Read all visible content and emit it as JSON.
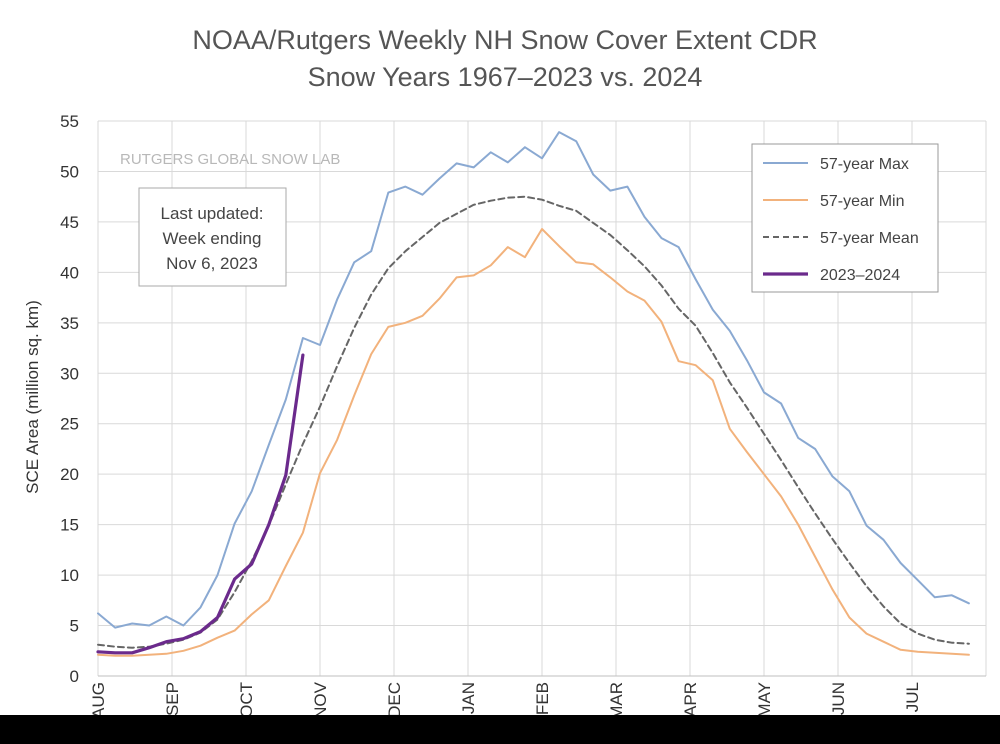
{
  "chart_data": {
    "type": "line",
    "title": "NOAA/Rutgers Weekly NH Snow Cover Extent CDR",
    "subtitle": "Snow Years 1967–2023 vs. 2024",
    "ylabel": "SCE Area (million sq. km)",
    "xlabel": "",
    "ylim": [
      0,
      55
    ],
    "yticks": [
      "0",
      "5",
      "10",
      "15",
      "20",
      "25",
      "30",
      "35",
      "40",
      "45",
      "50",
      "55"
    ],
    "month_labels": [
      "AUG",
      "SEP",
      "OCT",
      "NOV",
      "DEC",
      "JAN",
      "FEB",
      "MAR",
      "APR",
      "MAY",
      "JUN",
      "JUL"
    ],
    "weeks_per_month": 4.33,
    "grid": true,
    "legend_position": "top-right",
    "watermark": "RUTGERS GLOBAL SNOW LAB",
    "note": [
      "Last updated:",
      "Week ending",
      "Nov 6, 2023"
    ],
    "series": [
      {
        "name": "57-year Max",
        "color": "#8aa9d2",
        "dash": "",
        "values": [
          6.2,
          4.8,
          5.2,
          5.0,
          5.9,
          5.0,
          6.8,
          10.0,
          15.1,
          18.3,
          22.9,
          27.4,
          33.5,
          32.8,
          37.3,
          41.0,
          42.1,
          47.9,
          48.5,
          47.7,
          49.3,
          50.8,
          50.4,
          51.9,
          50.9,
          52.4,
          51.3,
          53.9,
          53.0,
          49.7,
          48.1,
          48.5,
          45.5,
          43.4,
          42.5,
          39.3,
          36.3,
          34.2,
          31.3,
          28.1,
          27.0,
          23.6,
          22.5,
          19.8,
          18.3,
          14.9,
          13.5,
          11.2,
          9.5,
          7.8,
          8.0,
          7.2
        ]
      },
      {
        "name": "57-year Min",
        "color": "#f2b27c",
        "dash": "",
        "values": [
          2.1,
          2.0,
          2.0,
          2.1,
          2.2,
          2.5,
          3.0,
          3.8,
          4.5,
          6.1,
          7.5,
          10.9,
          14.2,
          20.1,
          23.4,
          27.8,
          31.9,
          34.6,
          35.0,
          35.7,
          37.4,
          39.5,
          39.7,
          40.7,
          42.5,
          41.5,
          44.3,
          42.6,
          41.0,
          40.8,
          39.5,
          38.1,
          37.2,
          35.1,
          31.2,
          30.8,
          29.3,
          24.5,
          22.2,
          20.0,
          17.8,
          15.0,
          11.8,
          8.6,
          5.8,
          4.2,
          3.4,
          2.6,
          2.4,
          2.3,
          2.2,
          2.1
        ]
      },
      {
        "name": "57-year Mean",
        "color": "#666666",
        "dash": "6,4",
        "values": [
          3.1,
          2.9,
          2.8,
          2.9,
          3.2,
          3.6,
          4.3,
          5.6,
          8.3,
          11.4,
          14.9,
          19.0,
          23.0,
          26.7,
          30.7,
          34.5,
          37.8,
          40.4,
          42.1,
          43.5,
          44.9,
          45.8,
          46.7,
          47.1,
          47.4,
          47.5,
          47.2,
          46.6,
          46.1,
          44.9,
          43.7,
          42.2,
          40.6,
          38.7,
          36.4,
          34.7,
          32.0,
          29.1,
          26.6,
          24.0,
          21.4,
          18.7,
          16.1,
          13.6,
          11.2,
          8.9,
          6.9,
          5.2,
          4.2,
          3.6,
          3.3,
          3.2
        ]
      },
      {
        "name": "2023–2024",
        "color": "#6b2a8c",
        "dash": "",
        "values": [
          2.4,
          2.3,
          2.3,
          2.8,
          3.4,
          3.7,
          4.4,
          5.8,
          9.6,
          11.1,
          15.0,
          19.9,
          31.8
        ]
      }
    ]
  }
}
